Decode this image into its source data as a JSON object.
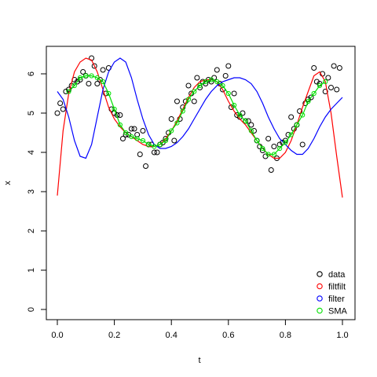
{
  "chart_data": {
    "type": "scatter",
    "title": "",
    "xlabel": "t",
    "ylabel": "x",
    "xlim": [
      0.0,
      1.0
    ],
    "ylim": [
      0,
      6.5
    ],
    "xticks": [
      "0.0",
      "0.2",
      "0.4",
      "0.6",
      "0.8",
      "1.0"
    ],
    "yticks": [
      "0",
      "1",
      "2",
      "3",
      "4",
      "5",
      "6"
    ],
    "grid": false,
    "legend_position": "bottom-right",
    "series": [
      {
        "name": "data",
        "kind": "points",
        "color": "#000000",
        "points": [
          [
            0.0,
            5.0
          ],
          [
            0.01,
            5.25
          ],
          [
            0.02,
            5.1
          ],
          [
            0.03,
            5.55
          ],
          [
            0.04,
            5.6
          ],
          [
            0.05,
            5.7
          ],
          [
            0.06,
            5.85
          ],
          [
            0.07,
            5.8
          ],
          [
            0.08,
            5.85
          ],
          [
            0.09,
            6.05
          ],
          [
            0.1,
            5.95
          ],
          [
            0.11,
            5.75
          ],
          [
            0.12,
            6.4
          ],
          [
            0.13,
            6.2
          ],
          [
            0.14,
            5.75
          ],
          [
            0.15,
            5.85
          ],
          [
            0.16,
            6.1
          ],
          [
            0.17,
            5.5
          ],
          [
            0.18,
            6.15
          ],
          [
            0.19,
            5.1
          ],
          [
            0.2,
            5.0
          ],
          [
            0.21,
            4.95
          ],
          [
            0.22,
            4.95
          ],
          [
            0.23,
            4.35
          ],
          [
            0.24,
            4.45
          ],
          [
            0.25,
            4.45
          ],
          [
            0.26,
            4.6
          ],
          [
            0.27,
            4.6
          ],
          [
            0.28,
            4.45
          ],
          [
            0.29,
            3.95
          ],
          [
            0.3,
            4.55
          ],
          [
            0.31,
            3.65
          ],
          [
            0.32,
            4.2
          ],
          [
            0.33,
            4.2
          ],
          [
            0.34,
            4.0
          ],
          [
            0.35,
            4.0
          ],
          [
            0.36,
            4.2
          ],
          [
            0.37,
            4.25
          ],
          [
            0.38,
            4.35
          ],
          [
            0.39,
            4.5
          ],
          [
            0.4,
            4.85
          ],
          [
            0.41,
            4.3
          ],
          [
            0.42,
            5.3
          ],
          [
            0.43,
            4.85
          ],
          [
            0.44,
            5.15
          ],
          [
            0.45,
            5.3
          ],
          [
            0.46,
            5.7
          ],
          [
            0.47,
            5.5
          ],
          [
            0.48,
            5.3
          ],
          [
            0.49,
            5.9
          ],
          [
            0.5,
            5.65
          ],
          [
            0.51,
            5.8
          ],
          [
            0.52,
            5.75
          ],
          [
            0.53,
            5.85
          ],
          [
            0.54,
            5.8
          ],
          [
            0.55,
            5.9
          ],
          [
            0.56,
            6.1
          ],
          [
            0.57,
            5.75
          ],
          [
            0.58,
            5.6
          ],
          [
            0.59,
            5.95
          ],
          [
            0.6,
            6.2
          ],
          [
            0.61,
            5.15
          ],
          [
            0.62,
            5.5
          ],
          [
            0.63,
            4.95
          ],
          [
            0.64,
            4.9
          ],
          [
            0.65,
            5.0
          ],
          [
            0.66,
            4.8
          ],
          [
            0.67,
            4.8
          ],
          [
            0.68,
            4.7
          ],
          [
            0.69,
            4.55
          ],
          [
            0.7,
            4.3
          ],
          [
            0.71,
            4.15
          ],
          [
            0.72,
            4.05
          ],
          [
            0.73,
            3.9
          ],
          [
            0.74,
            4.35
          ],
          [
            0.75,
            3.55
          ],
          [
            0.76,
            4.15
          ],
          [
            0.77,
            3.85
          ],
          [
            0.78,
            4.2
          ],
          [
            0.79,
            4.25
          ],
          [
            0.8,
            4.3
          ],
          [
            0.81,
            4.45
          ],
          [
            0.82,
            4.9
          ],
          [
            0.83,
            4.6
          ],
          [
            0.84,
            4.7
          ],
          [
            0.85,
            5.05
          ],
          [
            0.86,
            4.2
          ],
          [
            0.87,
            5.25
          ],
          [
            0.88,
            5.35
          ],
          [
            0.89,
            5.4
          ],
          [
            0.9,
            6.15
          ],
          [
            0.91,
            5.8
          ],
          [
            0.92,
            5.75
          ],
          [
            0.93,
            6.0
          ],
          [
            0.94,
            5.55
          ],
          [
            0.95,
            5.9
          ],
          [
            0.96,
            5.65
          ],
          [
            0.97,
            6.2
          ],
          [
            0.98,
            5.6
          ],
          [
            0.99,
            6.15
          ]
        ]
      },
      {
        "name": "filtfilt",
        "kind": "line",
        "color": "#ff0000",
        "points": [
          [
            0.0,
            2.9
          ],
          [
            0.02,
            4.55
          ],
          [
            0.04,
            5.5
          ],
          [
            0.06,
            6.05
          ],
          [
            0.08,
            6.3
          ],
          [
            0.1,
            6.4
          ],
          [
            0.12,
            6.35
          ],
          [
            0.14,
            6.05
          ],
          [
            0.16,
            5.6
          ],
          [
            0.18,
            5.15
          ],
          [
            0.2,
            4.85
          ],
          [
            0.22,
            4.65
          ],
          [
            0.24,
            4.5
          ],
          [
            0.26,
            4.4
          ],
          [
            0.28,
            4.3
          ],
          [
            0.3,
            4.2
          ],
          [
            0.32,
            4.15
          ],
          [
            0.34,
            4.15
          ],
          [
            0.36,
            4.2
          ],
          [
            0.38,
            4.35
          ],
          [
            0.4,
            4.55
          ],
          [
            0.42,
            4.8
          ],
          [
            0.44,
            5.1
          ],
          [
            0.46,
            5.4
          ],
          [
            0.48,
            5.65
          ],
          [
            0.5,
            5.8
          ],
          [
            0.52,
            5.85
          ],
          [
            0.54,
            5.85
          ],
          [
            0.56,
            5.8
          ],
          [
            0.58,
            5.6
          ],
          [
            0.6,
            5.3
          ],
          [
            0.62,
            5.05
          ],
          [
            0.64,
            4.85
          ],
          [
            0.66,
            4.7
          ],
          [
            0.68,
            4.5
          ],
          [
            0.7,
            4.3
          ],
          [
            0.72,
            4.1
          ],
          [
            0.74,
            3.95
          ],
          [
            0.76,
            3.85
          ],
          [
            0.78,
            3.85
          ],
          [
            0.8,
            4.0
          ],
          [
            0.82,
            4.3
          ],
          [
            0.84,
            4.7
          ],
          [
            0.86,
            5.15
          ],
          [
            0.88,
            5.55
          ],
          [
            0.9,
            5.95
          ],
          [
            0.92,
            6.05
          ],
          [
            0.94,
            5.8
          ],
          [
            0.96,
            5.0
          ],
          [
            0.98,
            3.9
          ],
          [
            1.0,
            2.85
          ]
        ]
      },
      {
        "name": "filter",
        "kind": "line",
        "color": "#0000ff",
        "points": [
          [
            0.0,
            5.55
          ],
          [
            0.02,
            5.35
          ],
          [
            0.04,
            4.9
          ],
          [
            0.06,
            4.3
          ],
          [
            0.08,
            3.9
          ],
          [
            0.1,
            3.85
          ],
          [
            0.12,
            4.2
          ],
          [
            0.14,
            4.9
          ],
          [
            0.16,
            5.6
          ],
          [
            0.18,
            6.05
          ],
          [
            0.2,
            6.3
          ],
          [
            0.22,
            6.4
          ],
          [
            0.24,
            6.3
          ],
          [
            0.26,
            5.9
          ],
          [
            0.28,
            5.35
          ],
          [
            0.3,
            4.85
          ],
          [
            0.32,
            4.45
          ],
          [
            0.34,
            4.2
          ],
          [
            0.36,
            4.1
          ],
          [
            0.38,
            4.1
          ],
          [
            0.4,
            4.15
          ],
          [
            0.42,
            4.25
          ],
          [
            0.44,
            4.4
          ],
          [
            0.46,
            4.6
          ],
          [
            0.48,
            4.85
          ],
          [
            0.5,
            5.1
          ],
          [
            0.52,
            5.35
          ],
          [
            0.54,
            5.55
          ],
          [
            0.56,
            5.7
          ],
          [
            0.58,
            5.8
          ],
          [
            0.6,
            5.85
          ],
          [
            0.62,
            5.9
          ],
          [
            0.64,
            5.9
          ],
          [
            0.66,
            5.85
          ],
          [
            0.68,
            5.75
          ],
          [
            0.7,
            5.55
          ],
          [
            0.72,
            5.25
          ],
          [
            0.74,
            4.9
          ],
          [
            0.76,
            4.6
          ],
          [
            0.78,
            4.35
          ],
          [
            0.8,
            4.2
          ],
          [
            0.82,
            4.05
          ],
          [
            0.84,
            3.95
          ],
          [
            0.86,
            3.95
          ],
          [
            0.88,
            4.1
          ],
          [
            0.9,
            4.35
          ],
          [
            0.92,
            4.65
          ],
          [
            0.94,
            4.9
          ],
          [
            0.96,
            5.1
          ],
          [
            0.98,
            5.25
          ],
          [
            1.0,
            5.4
          ]
        ]
      },
      {
        "name": "SMA",
        "kind": "line-markers",
        "color": "#00e000",
        "points": [
          [
            0.04,
            5.55
          ],
          [
            0.06,
            5.7
          ],
          [
            0.08,
            5.9
          ],
          [
            0.1,
            5.95
          ],
          [
            0.12,
            5.95
          ],
          [
            0.14,
            5.9
          ],
          [
            0.16,
            5.8
          ],
          [
            0.18,
            5.5
          ],
          [
            0.2,
            5.1
          ],
          [
            0.22,
            4.7
          ],
          [
            0.24,
            4.5
          ],
          [
            0.26,
            4.4
          ],
          [
            0.28,
            4.35
          ],
          [
            0.3,
            4.3
          ],
          [
            0.32,
            4.2
          ],
          [
            0.34,
            4.15
          ],
          [
            0.36,
            4.2
          ],
          [
            0.38,
            4.3
          ],
          [
            0.4,
            4.55
          ],
          [
            0.42,
            4.75
          ],
          [
            0.44,
            5.05
          ],
          [
            0.46,
            5.35
          ],
          [
            0.48,
            5.55
          ],
          [
            0.5,
            5.7
          ],
          [
            0.52,
            5.8
          ],
          [
            0.54,
            5.85
          ],
          [
            0.56,
            5.8
          ],
          [
            0.58,
            5.7
          ],
          [
            0.6,
            5.5
          ],
          [
            0.62,
            5.2
          ],
          [
            0.64,
            4.95
          ],
          [
            0.66,
            4.8
          ],
          [
            0.68,
            4.55
          ],
          [
            0.7,
            4.3
          ],
          [
            0.72,
            4.1
          ],
          [
            0.74,
            3.95
          ],
          [
            0.76,
            3.95
          ],
          [
            0.78,
            4.1
          ],
          [
            0.8,
            4.25
          ],
          [
            0.82,
            4.45
          ],
          [
            0.84,
            4.7
          ],
          [
            0.86,
            4.95
          ],
          [
            0.88,
            5.3
          ],
          [
            0.9,
            5.5
          ],
          [
            0.92,
            5.7
          ],
          [
            0.94,
            5.8
          ]
        ]
      }
    ]
  }
}
